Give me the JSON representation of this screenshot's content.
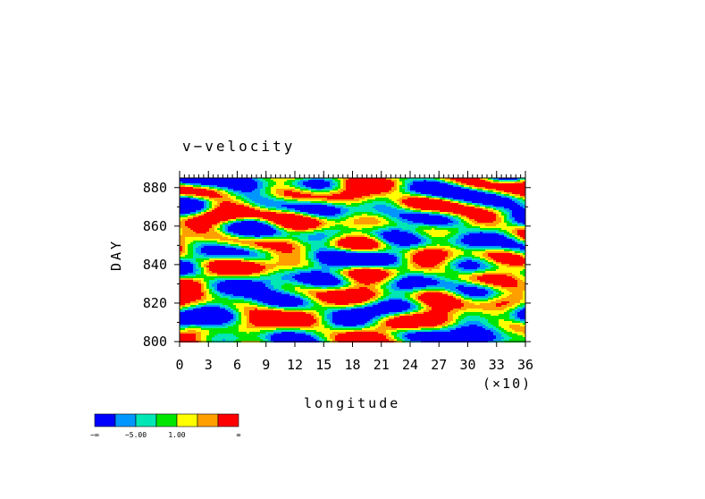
{
  "chart_data": {
    "type": "heatmap",
    "title": "v−velocity",
    "xlabel": "longitude",
    "x_multiplier_label": "(×10)",
    "ylabel": "DAY",
    "xlim": [
      0,
      36
    ],
    "ylim": [
      800,
      885
    ],
    "x_ticks": [
      "0",
      "3",
      "6",
      "9",
      "12",
      "15",
      "18",
      "21",
      "24",
      "27",
      "30",
      "33",
      "36"
    ],
    "y_ticks": [
      "800",
      "820",
      "840",
      "860",
      "880"
    ],
    "colorbar": {
      "colors": [
        "#0000ff",
        "#0096ff",
        "#00e6b4",
        "#00e600",
        "#ffff00",
        "#ffa000",
        "#ff0000"
      ],
      "labels": [
        "−∞",
        "−5.00",
        "1.00",
        "∞"
      ]
    }
  }
}
